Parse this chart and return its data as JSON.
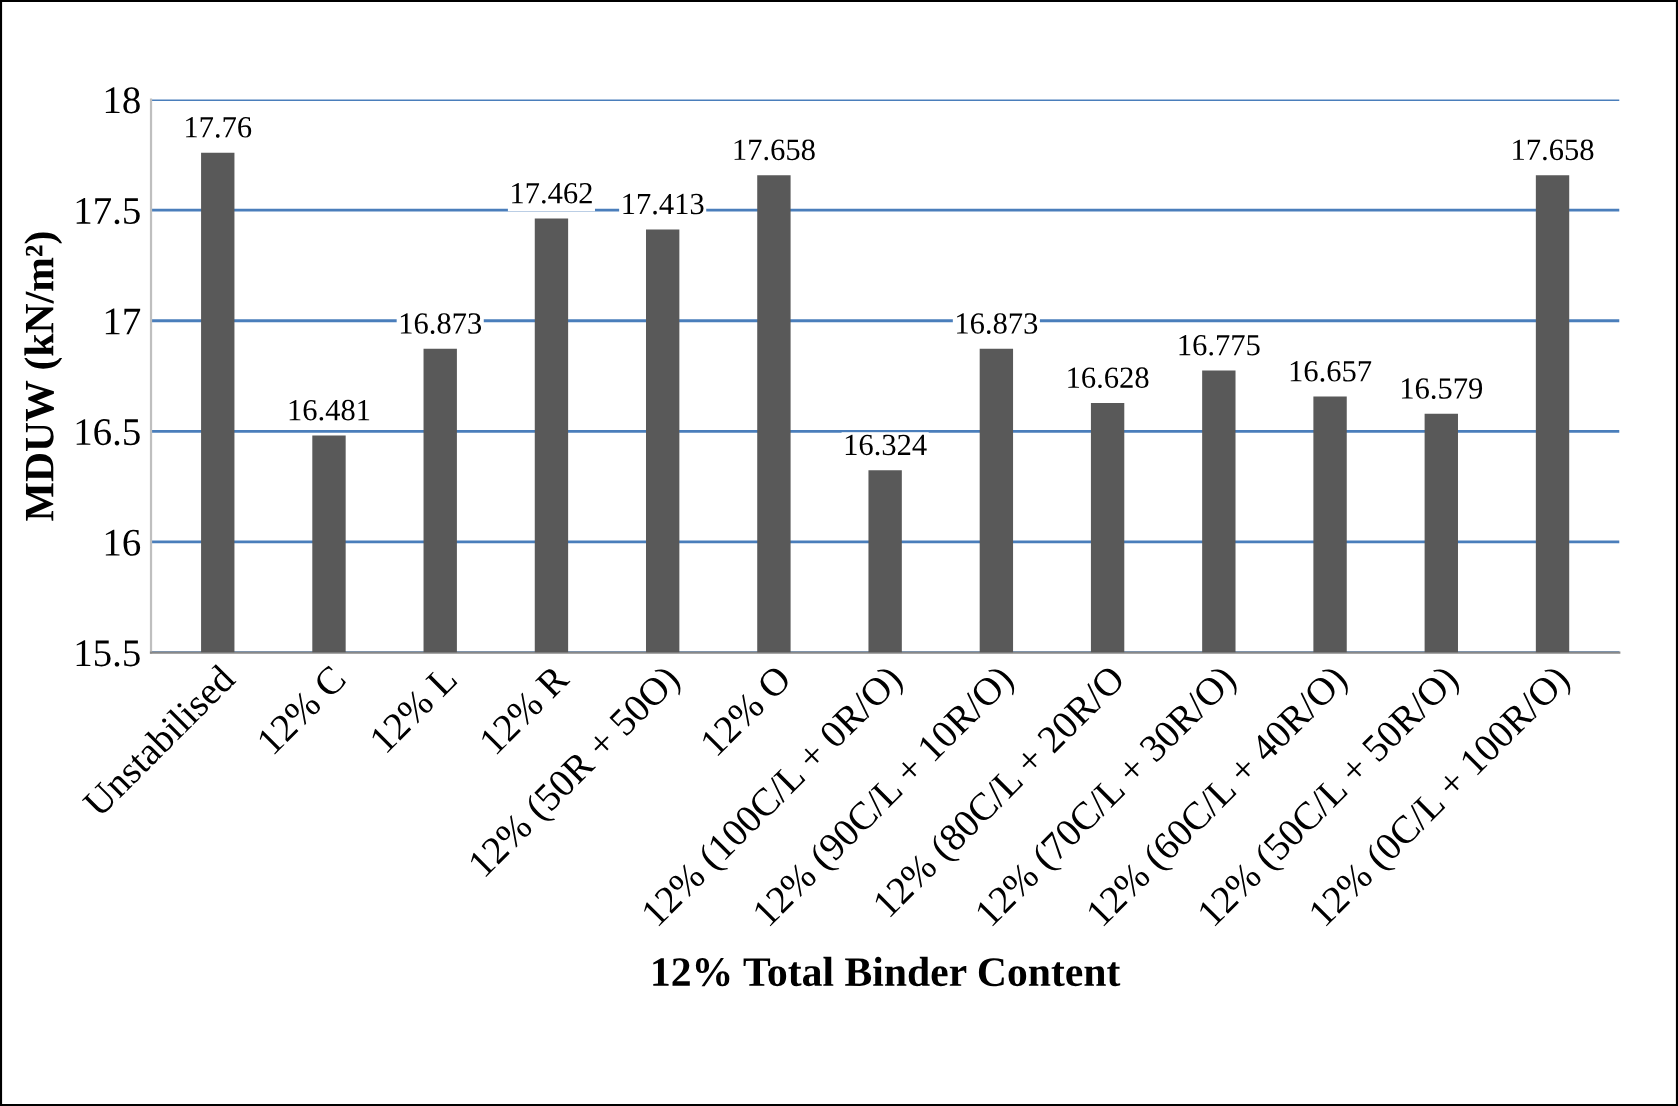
{
  "chart_data": {
    "type": "bar",
    "xlabel": "12% Total Binder Content",
    "ylabel": "MDUW (kN/m²)",
    "categories": [
      "Unstabilised",
      "12% C",
      "12% L",
      "12% R",
      "12% (50R + 50O)",
      "12% O",
      "12% (100C/L + 0R/O)",
      "12% (90C/L + 10R/O)",
      "12% (80C/L + 20R/O",
      "12% (70C/L + 30R/O)",
      "12% (60C/L + 40R/O)",
      "12% (50C/L + 50R/O)",
      "12% (0C/L + 100R/O)"
    ],
    "values": [
      17.76,
      16.481,
      16.873,
      17.462,
      17.413,
      17.658,
      16.324,
      16.873,
      16.628,
      16.775,
      16.657,
      16.579,
      17.658
    ],
    "color": "#595959",
    "ylim": [
      15.5,
      18
    ],
    "yticks": [
      15.5,
      16,
      16.5,
      17,
      17.5,
      18
    ],
    "grid": "y",
    "data_labels": true
  }
}
